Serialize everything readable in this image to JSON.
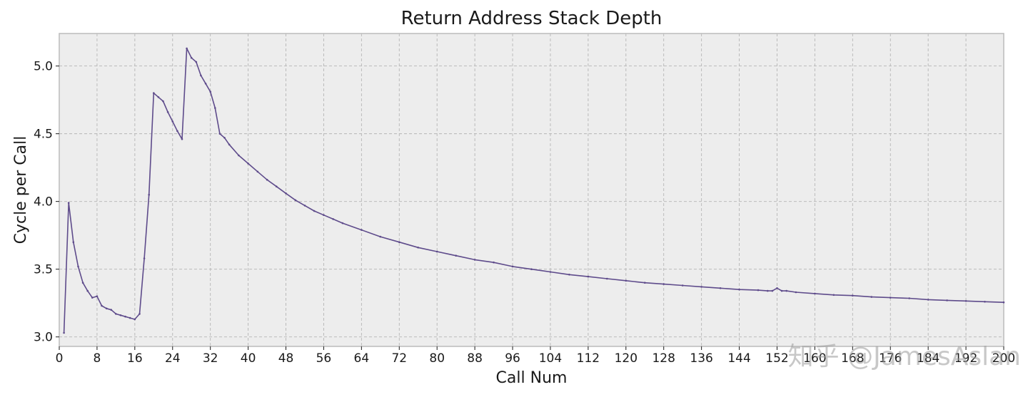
{
  "colors": {
    "plot_background": "#EDEDED",
    "grid": "#B5B5B5",
    "axes_edge": "#BCBCBC",
    "line": "#5E4B8B",
    "text": "#1a1a1a",
    "watermark": "#9a9a9a"
  },
  "watermark": "知乎 @JamesAslan",
  "chart_data": {
    "type": "line",
    "title": "Return Address Stack Depth",
    "xlabel": "Call Num",
    "ylabel": "Cycle per Call",
    "xlim": [
      0,
      200
    ],
    "ylim": [
      2.93,
      5.24
    ],
    "xticks": [
      0,
      8,
      16,
      24,
      32,
      40,
      48,
      56,
      64,
      72,
      80,
      88,
      96,
      104,
      112,
      120,
      128,
      136,
      144,
      152,
      160,
      168,
      176,
      184,
      192,
      200
    ],
    "xtick_labels": [
      "0",
      "8",
      "16",
      "24",
      "32",
      "40",
      "48",
      "56",
      "64",
      "72",
      "80",
      "88",
      "96",
      "104",
      "112",
      "120",
      "128",
      "136",
      "144",
      "152",
      "160",
      "168",
      "176",
      "184",
      "192",
      "200"
    ],
    "yticks": [
      3.0,
      3.5,
      4.0,
      4.5,
      5.0
    ],
    "ytick_labels": [
      "3.0",
      "3.5",
      "4.0",
      "4.5",
      "5.0"
    ],
    "grid": true,
    "marker": "small dot",
    "x": [
      1,
      2,
      3,
      4,
      5,
      6,
      7,
      8,
      9,
      10,
      11,
      12,
      13,
      14,
      15,
      16,
      17,
      18,
      19,
      20,
      21,
      22,
      23,
      24,
      25,
      26,
      27,
      28,
      29,
      30,
      31,
      32,
      33,
      34,
      35,
      36,
      38,
      40,
      42,
      44,
      46,
      48,
      50,
      52,
      54,
      56,
      58,
      60,
      64,
      68,
      72,
      76,
      80,
      84,
      88,
      92,
      96,
      100,
      104,
      108,
      112,
      116,
      120,
      124,
      128,
      132,
      136,
      140,
      144,
      148,
      150,
      151,
      152,
      153,
      154,
      156,
      160,
      164,
      168,
      172,
      176,
      180,
      184,
      188,
      192,
      196,
      200
    ],
    "y": [
      3.03,
      3.99,
      3.7,
      3.52,
      3.4,
      3.34,
      3.29,
      3.3,
      3.23,
      3.21,
      3.2,
      3.17,
      3.16,
      3.15,
      3.14,
      3.13,
      3.17,
      3.58,
      4.05,
      4.8,
      4.77,
      4.74,
      4.66,
      4.59,
      4.52,
      4.46,
      5.13,
      5.06,
      5.03,
      4.93,
      4.87,
      4.81,
      4.69,
      4.5,
      4.47,
      4.42,
      4.34,
      4.28,
      4.22,
      4.16,
      4.11,
      4.06,
      4.01,
      3.97,
      3.93,
      3.9,
      3.87,
      3.84,
      3.79,
      3.74,
      3.7,
      3.66,
      3.63,
      3.6,
      3.57,
      3.55,
      3.52,
      3.5,
      3.48,
      3.46,
      3.445,
      3.43,
      3.415,
      3.4,
      3.39,
      3.38,
      3.37,
      3.36,
      3.35,
      3.345,
      3.34,
      3.34,
      3.36,
      3.34,
      3.34,
      3.33,
      3.32,
      3.31,
      3.305,
      3.295,
      3.29,
      3.285,
      3.275,
      3.27,
      3.265,
      3.26,
      3.255
    ]
  }
}
